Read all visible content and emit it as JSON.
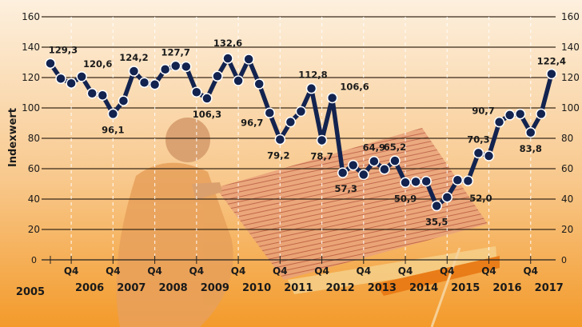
{
  "chart_data": {
    "type": "line",
    "title": "",
    "ylabel": "Indexwert",
    "xlabel": "",
    "ylim": [
      0,
      160
    ],
    "yticks": [
      0,
      20,
      40,
      60,
      80,
      100,
      120,
      140,
      160
    ],
    "grid": true,
    "quarter_tick_label": "Q4",
    "year_labels": [
      "2005",
      "2006",
      "2007",
      "2008",
      "2009",
      "2010",
      "2011",
      "2012",
      "2013",
      "2014",
      "2015",
      "2016",
      "2017"
    ],
    "x_start": "2005 Q2",
    "x_end": "2017 Q2",
    "series": [
      {
        "color": "#13234f",
        "values": [
          129.3,
          119.3,
          116.2,
          120.6,
          109.6,
          108.3,
          96.1,
          104.7,
          124.2,
          116.7,
          115.4,
          125.4,
          127.7,
          127.2,
          110.4,
          106.3,
          120.9,
          132.6,
          117.9,
          132.1,
          115.8,
          96.7,
          79.2,
          90.7,
          97.7,
          112.8,
          78.7,
          106.6,
          57.3,
          62.3,
          56.1,
          64.9,
          59.6,
          65.2,
          50.9,
          51.4,
          51.7,
          35.5,
          41.2,
          52.5,
          52.0,
          70.3,
          68.4,
          90.7,
          95.3,
          96.0,
          83.8,
          96.1,
          122.4
        ]
      }
    ],
    "data_labels": [
      {
        "index": 0,
        "text": "129,3"
      },
      {
        "index": 3,
        "text": "120,6"
      },
      {
        "index": 6,
        "text": "96,1"
      },
      {
        "index": 8,
        "text": "124,2"
      },
      {
        "index": 12,
        "text": "127,7"
      },
      {
        "index": 15,
        "text": "106,3"
      },
      {
        "index": 17,
        "text": "132,6"
      },
      {
        "index": 21,
        "text": "96,7"
      },
      {
        "index": 22,
        "text": "79,2"
      },
      {
        "index": 25,
        "text": "112,8"
      },
      {
        "index": 26,
        "text": "78,7"
      },
      {
        "index": 27,
        "text": "106,6"
      },
      {
        "index": 28,
        "text": "57,3"
      },
      {
        "index": 31,
        "text": "64,9"
      },
      {
        "index": 33,
        "text": "65,2"
      },
      {
        "index": 34,
        "text": "50,9"
      },
      {
        "index": 37,
        "text": "35,5"
      },
      {
        "index": 40,
        "text": "52,0"
      },
      {
        "index": 41,
        "text": "70,3"
      },
      {
        "index": 43,
        "text": "90,7"
      },
      {
        "index": 46,
        "text": "83,8"
      },
      {
        "index": 48,
        "text": "122,4"
      }
    ],
    "colors": {
      "background_top": "#fbe9d2",
      "background_bottom": "#f39a2a",
      "line": "#13234f",
      "marker_fill": "#13234f",
      "marker_stroke": "#ffffff"
    }
  }
}
